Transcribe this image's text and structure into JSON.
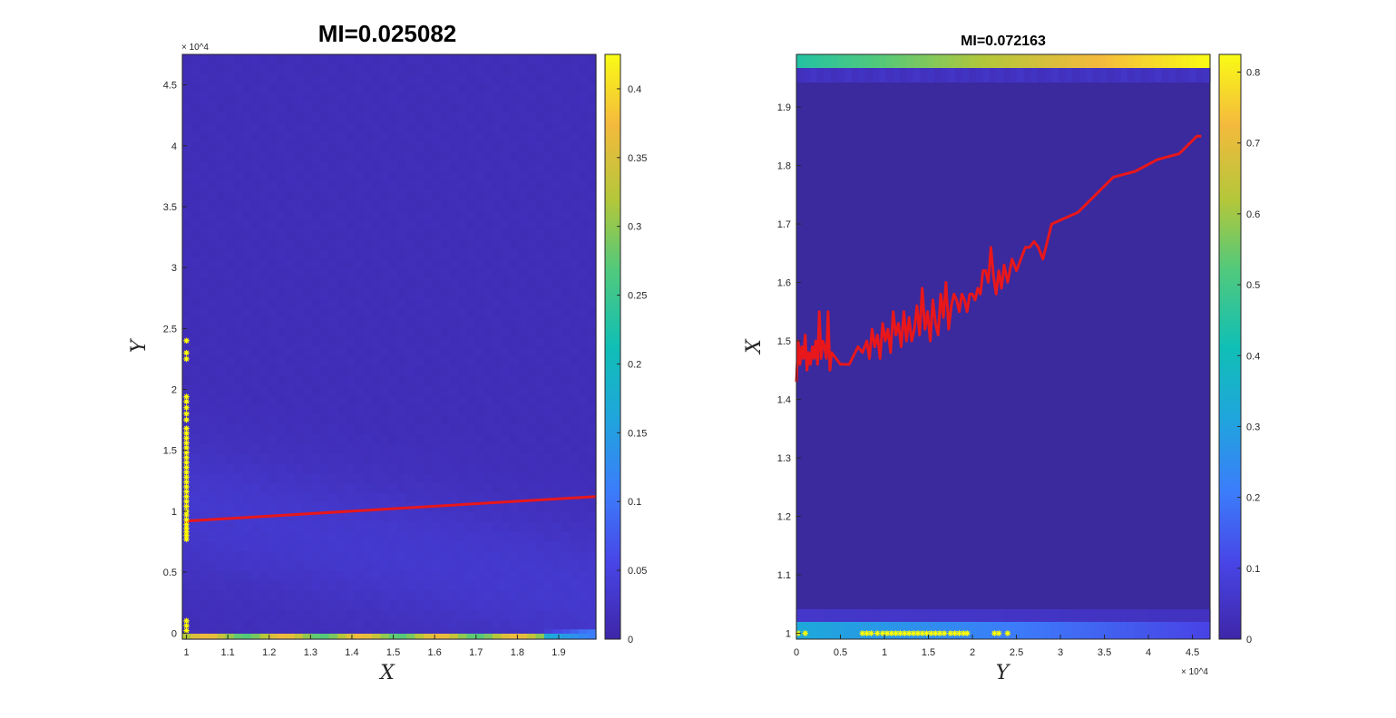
{
  "chart_data": [
    {
      "type": "heatmap",
      "title": "MI=0.025082",
      "xlabel": "X",
      "ylabel": "Y",
      "x_ticks": [
        "1",
        "1.1",
        "1.2",
        "1.3",
        "1.4",
        "1.5",
        "1.6",
        "1.7",
        "1.8",
        "1.9"
      ],
      "x_tick_values": [
        1,
        1.1,
        1.2,
        1.3,
        1.4,
        1.5,
        1.6,
        1.7,
        1.8,
        1.9
      ],
      "y_ticks": [
        "0",
        "0.5",
        "1",
        "1.5",
        "2",
        "2.5",
        "3",
        "3.5",
        "4",
        "4.5"
      ],
      "y_tick_values": [
        0,
        5000,
        10000,
        15000,
        20000,
        25000,
        30000,
        35000,
        40000,
        45000
      ],
      "y_exponent": "× 10^4",
      "xlim": [
        0.99,
        1.99
      ],
      "ylim": [
        -500,
        47500
      ],
      "colorbar": {
        "ticks": [
          "0",
          "0.05",
          "0.1",
          "0.15",
          "0.2",
          "0.25",
          "0.3",
          "0.35",
          "0.4"
        ],
        "tick_values": [
          0,
          0.05,
          0.1,
          0.15,
          0.2,
          0.25,
          0.3,
          0.35,
          0.4
        ],
        "range": [
          0,
          0.425
        ]
      },
      "colormap": "parula",
      "fit_line": {
        "color": "#e8171b",
        "x": [
          1.0,
          1.0,
          1.99
        ],
        "y": [
          7800,
          9200,
          11200
        ]
      },
      "markers": {
        "color": "#ffff00",
        "symbol": "*",
        "x": 1.0,
        "y": [
          200,
          600,
          1000,
          7700,
          8000,
          8300,
          8600,
          8900,
          9300,
          9700,
          10000,
          10400,
          10800,
          11200,
          11600,
          12000,
          12400,
          12800,
          13200,
          13600,
          14000,
          14400,
          14800,
          15200,
          15600,
          16000,
          16400,
          16800,
          17500,
          18000,
          18500,
          19000,
          19400,
          22500,
          23000,
          24000
        ]
      }
    },
    {
      "type": "heatmap",
      "title": "MI=0.072163",
      "xlabel": "Y",
      "ylabel": "X",
      "x_ticks": [
        "0",
        "0.5",
        "1",
        "1.5",
        "2",
        "2.5",
        "3",
        "3.5",
        "4",
        "4.5"
      ],
      "x_tick_values": [
        0,
        5000,
        10000,
        15000,
        20000,
        25000,
        30000,
        35000,
        40000,
        45000
      ],
      "x_exponent": "× 10^4",
      "y_ticks": [
        "1",
        "1.1",
        "1.2",
        "1.3",
        "1.4",
        "1.5",
        "1.6",
        "1.7",
        "1.8",
        "1.9"
      ],
      "y_tick_values": [
        1,
        1.1,
        1.2,
        1.3,
        1.4,
        1.5,
        1.6,
        1.7,
        1.8,
        1.9
      ],
      "xlim": [
        0,
        47000
      ],
      "ylim": [
        0.99,
        1.99
      ],
      "colorbar": {
        "ticks": [
          "0",
          "0.1",
          "0.2",
          "0.3",
          "0.4",
          "0.5",
          "0.6",
          "0.7",
          "0.8"
        ],
        "tick_values": [
          0,
          0.1,
          0.2,
          0.3,
          0.4,
          0.5,
          0.6,
          0.7,
          0.8
        ],
        "range": [
          0,
          0.825
        ]
      },
      "colormap": "parula",
      "fit_line": {
        "color": "#e8171b",
        "x": [
          0,
          200,
          400,
          600,
          800,
          1000,
          1200,
          1400,
          1600,
          1800,
          2000,
          2200,
          2400,
          2600,
          2800,
          3000,
          3200,
          3400,
          3600,
          3800,
          4000,
          5000,
          6000,
          7000,
          7500,
          8000,
          8300,
          8600,
          8900,
          9200,
          9500,
          9800,
          10100,
          10400,
          10700,
          11000,
          11300,
          11600,
          11900,
          12200,
          12500,
          12800,
          13100,
          13400,
          13700,
          14000,
          14300,
          14600,
          14900,
          15200,
          15500,
          15800,
          16100,
          16400,
          16700,
          17000,
          17300,
          17600,
          17900,
          18200,
          18500,
          18800,
          19100,
          19400,
          19700,
          20000,
          20300,
          20600,
          20900,
          21200,
          21500,
          21800,
          22100,
          22400,
          22700,
          23000,
          23300,
          23600,
          24000,
          24500,
          25000,
          25500,
          26000,
          26500,
          27000,
          27500,
          28000,
          29000,
          30500,
          32000,
          34000,
          36000,
          38500,
          41000,
          43500,
          45500,
          46000,
          47000
        ],
        "y": [
          1.43,
          1.5,
          1.46,
          1.49,
          1.47,
          1.51,
          1.45,
          1.48,
          1.46,
          1.49,
          1.47,
          1.5,
          1.46,
          1.55,
          1.47,
          1.5,
          1.49,
          1.47,
          1.55,
          1.45,
          1.48,
          1.46,
          1.46,
          1.49,
          1.48,
          1.5,
          1.47,
          1.52,
          1.49,
          1.51,
          1.47,
          1.53,
          1.5,
          1.52,
          1.48,
          1.55,
          1.51,
          1.53,
          1.49,
          1.55,
          1.5,
          1.54,
          1.5,
          1.52,
          1.56,
          1.51,
          1.59,
          1.52,
          1.55,
          1.5,
          1.57,
          1.53,
          1.51,
          1.58,
          1.54,
          1.6,
          1.52,
          1.56,
          1.58,
          1.57,
          1.55,
          1.58,
          1.57,
          1.55,
          1.58,
          1.58,
          1.57,
          1.59,
          1.58,
          1.62,
          1.62,
          1.6,
          1.66,
          1.61,
          1.58,
          1.62,
          1.59,
          1.63,
          1.6,
          1.64,
          1.62,
          1.64,
          1.66,
          1.66,
          1.67,
          1.66,
          1.64,
          1.7,
          1.71,
          1.72,
          1.75,
          1.78,
          1.79,
          1.81,
          1.82,
          1.85,
          1.85
        ]
      },
      "markers": {
        "color": "#ffff00",
        "symbol": "*",
        "y": 1.0,
        "x": [
          200,
          1000,
          7500,
          8000,
          8500,
          9200,
          9800,
          10300,
          10800,
          11300,
          11800,
          12300,
          12800,
          13300,
          13800,
          14300,
          14800,
          15300,
          15800,
          16300,
          16800,
          17500,
          18000,
          18500,
          19000,
          19400,
          22500,
          23000,
          24000
        ]
      }
    }
  ]
}
